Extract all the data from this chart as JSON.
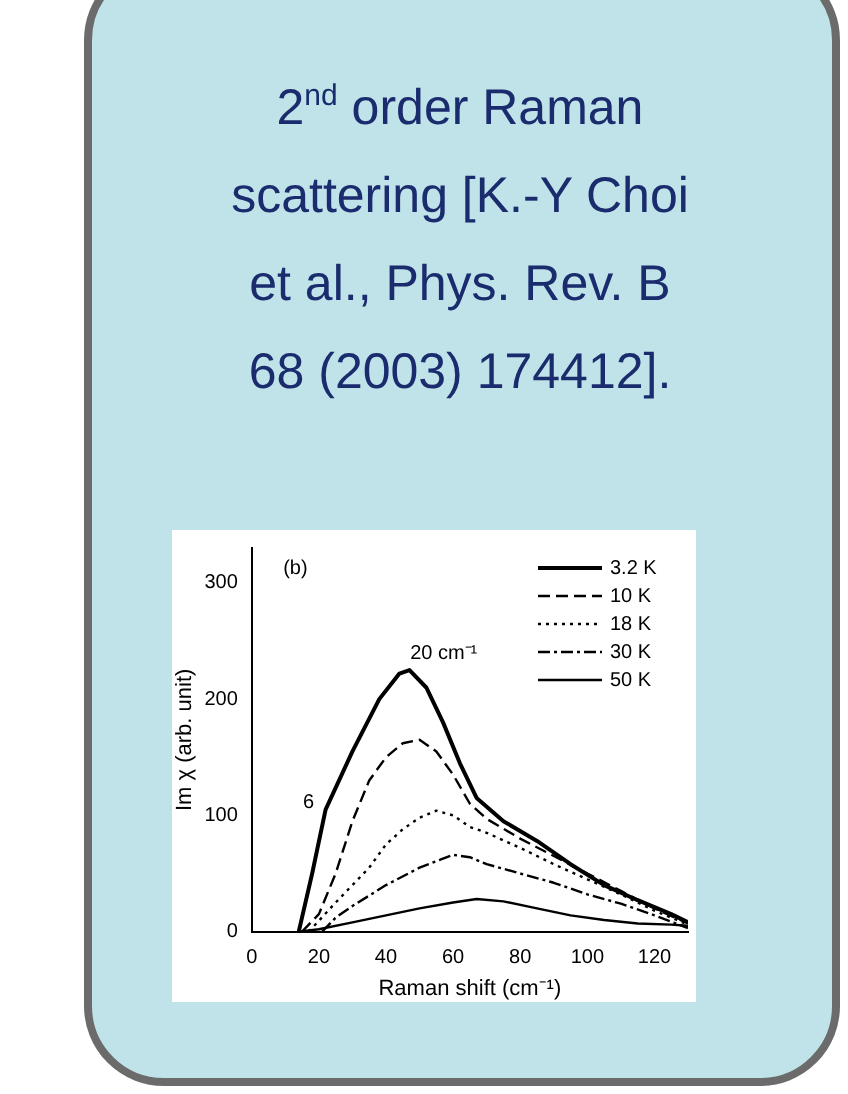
{
  "chart_data": {
    "type": "line",
    "title": "2$^{nd}$ order Raman scattering [K.-Y Choi et al., Phys. Rev. B 68 (2003) 174412].",
    "xlabel": "Raman shift (cm⁻¹)",
    "ylabel": "Im χ (arb. unit)",
    "xlim": [
      0,
      130
    ],
    "xticks": [
      0,
      20,
      40,
      60,
      80,
      100,
      120
    ],
    "ylim": [
      0,
      330
    ],
    "yticks": [
      0,
      100,
      200,
      300
    ],
    "grid": false,
    "legend": "top right",
    "marker": "none",
    "annotations": [
      "(b)",
      "20 cm⁻¹",
      "6"
    ],
    "series": [
      {
        "name": "3.2 K",
        "color": "#000000",
        "line_style": "solid",
        "x": [
          14,
          18,
          22,
          30,
          38,
          44,
          47,
          52,
          57,
          62,
          67,
          75,
          85,
          95,
          105,
          115,
          125,
          130
        ],
        "values": [
          0,
          50,
          105,
          155,
          200,
          222,
          225,
          210,
          180,
          145,
          115,
          95,
          78,
          58,
          40,
          27,
          15,
          8
        ]
      },
      {
        "name": "10 K",
        "color": "#000000",
        "line_style": "dashed",
        "x": [
          15,
          20,
          25,
          30,
          35,
          40,
          45,
          50,
          55,
          60,
          65,
          70,
          80,
          90,
          100,
          110,
          120,
          130
        ],
        "values": [
          0,
          15,
          50,
          95,
          130,
          150,
          162,
          165,
          155,
          135,
          110,
          97,
          80,
          65,
          50,
          35,
          20,
          7
        ]
      },
      {
        "name": "18 K",
        "color": "#000000",
        "line_style": "dotted",
        "x": [
          17,
          25,
          30,
          35,
          40,
          45,
          50,
          55,
          60,
          65,
          70,
          80,
          90,
          100,
          110,
          120,
          130
        ],
        "values": [
          0,
          25,
          40,
          55,
          75,
          88,
          98,
          104,
          100,
          90,
          85,
          72,
          58,
          45,
          32,
          18,
          6
        ]
      },
      {
        "name": "30 K",
        "color": "#000000",
        "line_style": "dashdot",
        "x": [
          21,
          25,
          30,
          40,
          50,
          60,
          65,
          70,
          80,
          90,
          100,
          110,
          120,
          130
        ],
        "values": [
          0,
          12,
          22,
          40,
          55,
          66,
          64,
          58,
          50,
          42,
          32,
          24,
          14,
          3
        ]
      },
      {
        "name": "50 K",
        "color": "#000000",
        "line_style": "solid",
        "x": [
          14,
          20,
          30,
          40,
          50,
          60,
          67,
          75,
          85,
          95,
          105,
          115,
          125,
          130
        ],
        "values": [
          0,
          2,
          8,
          14,
          20,
          25,
          28,
          26,
          20,
          14,
          10,
          7,
          6,
          5
        ]
      }
    ]
  }
}
